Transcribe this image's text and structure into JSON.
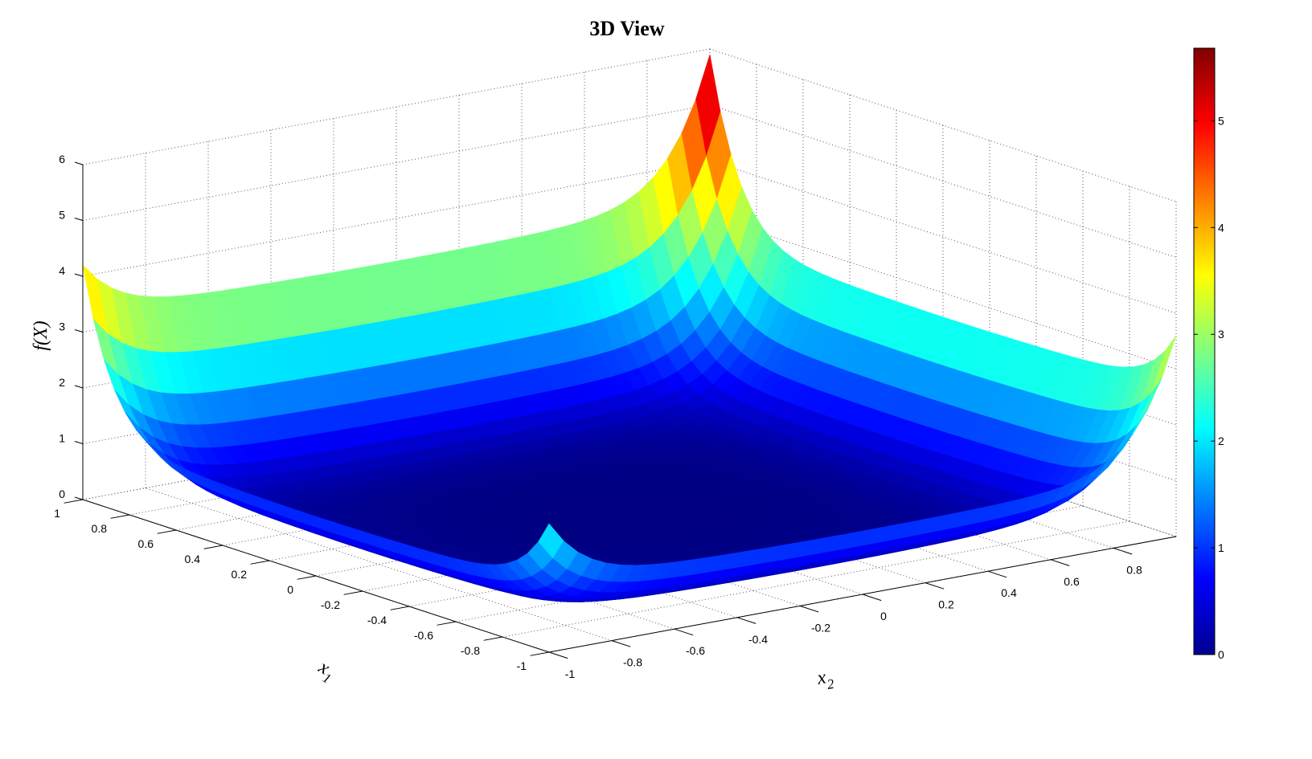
{
  "chart_data": {
    "type": "surface",
    "title": "3D View",
    "xlabel": "x_1",
    "ylabel": "x_2",
    "zlabel": "f(X)",
    "xlim": [
      -1,
      1
    ],
    "ylim": [
      -1,
      1
    ],
    "zlim": [
      0,
      6
    ],
    "x_ticks": [
      "-1",
      "-0.8",
      "-0.6",
      "-0.4",
      "-0.2",
      "0",
      "0.2",
      "0.4",
      "0.6",
      "0.8",
      "1"
    ],
    "y_ticks": [
      "-1",
      "-0.8",
      "-0.6",
      "-0.4",
      "-0.2",
      "0",
      "0.2",
      "0.4",
      "0.6",
      "0.8"
    ],
    "z_ticks": [
      "0",
      "1",
      "2",
      "3",
      "4",
      "5",
      "6"
    ],
    "corner_values": {
      "x1=1,x2=1": 5.6,
      "x1=1,x2=-1": 3.9,
      "x1=-1,x2=1": 3.3,
      "center": 0
    },
    "grid": true,
    "colormap": "jet",
    "colorbar": {
      "range": [
        0,
        5.68
      ],
      "ticks": [
        "0",
        "1",
        "2",
        "3",
        "4",
        "5"
      ],
      "placement": "right"
    }
  }
}
